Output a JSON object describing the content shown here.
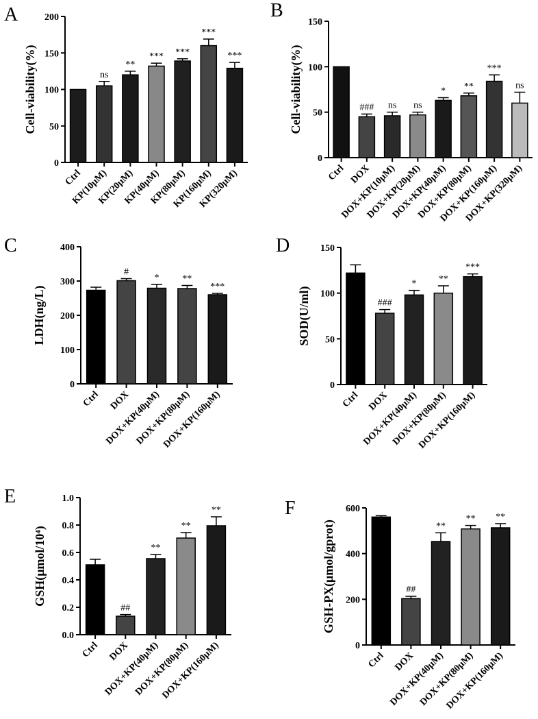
{
  "chart_data": [
    {
      "panel": "A",
      "type": "bar",
      "title": "",
      "xlabel": "",
      "ylabel": "Cell-viability(%)",
      "ylim": [
        0,
        200
      ],
      "yticks": [
        0,
        50,
        100,
        150,
        200
      ],
      "categories": [
        "Ctrl",
        "KP(10μM)",
        "KP(20μM)",
        "KP(40μM)",
        "KP(80μM)",
        "KP(160μM)",
        "KP(320μM)"
      ],
      "values": [
        100,
        105,
        120,
        132,
        139,
        160,
        129
      ],
      "errors": [
        0,
        6,
        5,
        4,
        3,
        9,
        8
      ],
      "significance": [
        "",
        "ns",
        "**",
        "***",
        "***",
        "***",
        "***"
      ],
      "colors": [
        "#1c1c1c",
        "#333333",
        "#1a1a1a",
        "#888888",
        "#202020",
        "#444444",
        "#1a1a1a"
      ]
    },
    {
      "panel": "B",
      "type": "bar",
      "title": "",
      "xlabel": "",
      "ylabel": "Cell-viability(%)",
      "ylim": [
        0,
        150
      ],
      "yticks": [
        0,
        50,
        100,
        150
      ],
      "categories": [
        "Ctrl",
        "DOX",
        "DOX+KP(10μM)",
        "DOX+KP(20μM)",
        "DOX+KP(40μM)",
        "DOX+KP(80μM)",
        "DOX+KP(160μM)",
        "DOX+KP(320μM)"
      ],
      "values": [
        100,
        45,
        46,
        47,
        63,
        68,
        84,
        60
      ],
      "errors": [
        0,
        3,
        4,
        3,
        3,
        3,
        7,
        12
      ],
      "significance": [
        "",
        "###",
        "ns",
        "ns",
        "*",
        "**",
        "***",
        "ns"
      ],
      "colors": [
        "#111111",
        "#444444",
        "#2a2a2a",
        "#8a8a8a",
        "#1a1a1a",
        "#555555",
        "#333333",
        "#bbbbbb"
      ]
    },
    {
      "panel": "C",
      "type": "bar",
      "title": "",
      "xlabel": "",
      "ylabel": "LDH(ng/L)",
      "ylim": [
        0,
        400
      ],
      "yticks": [
        0,
        100,
        200,
        300,
        400
      ],
      "categories": [
        "Ctrl",
        "DOX",
        "DOX+KP(40μM)",
        "DOX+KP(80μM)",
        "DOX+KP(160μM)"
      ],
      "values": [
        273,
        301,
        279,
        278,
        260
      ],
      "errors": [
        9,
        6,
        11,
        9,
        4
      ],
      "significance": [
        "",
        "#",
        "*",
        "**",
        "***"
      ],
      "colors": [
        "#000000",
        "#444444",
        "#2a2a2a",
        "#444444",
        "#1a1a1a"
      ]
    },
    {
      "panel": "D",
      "type": "bar",
      "title": "",
      "xlabel": "",
      "ylabel": "SOD(U/ml)",
      "ylim": [
        0,
        150
      ],
      "yticks": [
        0,
        50,
        100,
        150
      ],
      "categories": [
        "Ctrl",
        "DOX",
        "DOX+KP(40μM)",
        "DOX+KP(80μM)",
        "DOX+KP(160μM)"
      ],
      "values": [
        122,
        78,
        98,
        100,
        118
      ],
      "errors": [
        9,
        4,
        5,
        8,
        3
      ],
      "significance": [
        "",
        "###",
        "*",
        "**",
        "***"
      ],
      "colors": [
        "#000000",
        "#444444",
        "#222222",
        "#8a8a8a",
        "#1a1a1a"
      ]
    },
    {
      "panel": "E",
      "type": "bar",
      "title": "",
      "xlabel": "",
      "ylabel": "GSH(μmol/10⁴)",
      "ylim": [
        0,
        1.0
      ],
      "yticks": [
        0.0,
        0.2,
        0.4,
        0.6,
        0.8,
        1.0
      ],
      "categories": [
        "Ctrl",
        "DOX",
        "DOX+KP(40μM)",
        "DOX+KP(80μM)",
        "DOX+KP(160μM)"
      ],
      "values": [
        0.51,
        0.135,
        0.555,
        0.705,
        0.795
      ],
      "errors": [
        0.04,
        0.012,
        0.03,
        0.04,
        0.065
      ],
      "significance": [
        "",
        "##",
        "**",
        "**",
        "**"
      ],
      "colors": [
        "#000000",
        "#444444",
        "#222222",
        "#8a8a8a",
        "#1a1a1a"
      ]
    },
    {
      "panel": "F",
      "type": "bar",
      "title": "",
      "xlabel": "",
      "ylabel": "GSH-PX(μmol/gprot)",
      "ylim": [
        0,
        600
      ],
      "yticks": [
        0,
        200,
        400,
        600
      ],
      "categories": [
        "Ctrl",
        "DOX",
        "DOX+KP(40μM)",
        "DOX+KP(80μM)",
        "DOX+KP(160μM)"
      ],
      "values": [
        560,
        203,
        453,
        508,
        513
      ],
      "errors": [
        6,
        10,
        38,
        15,
        18
      ],
      "significance": [
        "",
        "##",
        "**",
        "**",
        "**"
      ],
      "colors": [
        "#000000",
        "#444444",
        "#222222",
        "#8a8a8a",
        "#1a1a1a"
      ]
    }
  ]
}
